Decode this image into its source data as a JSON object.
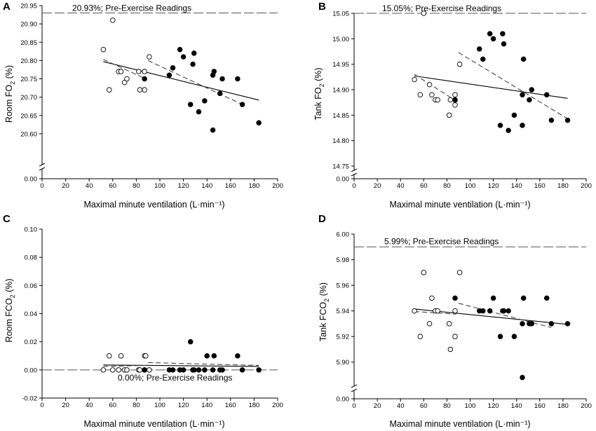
{
  "figure": {
    "xlabel": "Maximal minute ventilation (L·min⁻¹)"
  },
  "chart_data": [
    {
      "type": "scatter",
      "panel": "A",
      "ylabel_main": "Room FO",
      "ylabel_sub": "2",
      "ylabel_end": " (%)",
      "xlim": [
        0,
        200
      ],
      "x_ticks": [
        0,
        20,
        40,
        60,
        80,
        100,
        120,
        140,
        160,
        180,
        200
      ],
      "ylim": [
        20.55,
        20.95
      ],
      "y_ticks": [
        20.6,
        20.65,
        20.7,
        20.75,
        20.8,
        20.85,
        20.9,
        20.95
      ],
      "y_tick_labels": [
        "20.60",
        "20.65",
        "20.70",
        "20.75",
        "20.80",
        "20.85",
        "20.90",
        "20.95"
      ],
      "y_zero_label": "0.00",
      "y_axis_break": true,
      "reference": {
        "value": 20.93,
        "label": "20.93%; Pre-Exercise Readings"
      },
      "series": [
        {
          "name": "open",
          "filled": false,
          "x": [
            52,
            57,
            60,
            65,
            67,
            70,
            72,
            82,
            83,
            87,
            87,
            91
          ],
          "y": [
            20.83,
            20.72,
            20.91,
            20.77,
            20.77,
            20.74,
            20.75,
            20.77,
            20.72,
            20.77,
            20.72,
            20.81
          ]
        },
        {
          "name": "filled",
          "filled": true,
          "x": [
            87,
            108,
            111,
            117,
            120,
            126,
            128,
            129,
            133,
            138,
            145,
            145,
            146,
            151,
            153,
            166,
            170,
            184
          ],
          "y": [
            20.75,
            20.76,
            20.78,
            20.83,
            20.81,
            20.68,
            20.79,
            20.82,
            20.66,
            20.69,
            20.61,
            20.76,
            20.77,
            20.71,
            20.75,
            20.75,
            20.68,
            20.63
          ]
        }
      ],
      "fits": [
        {
          "style": "solid",
          "x": [
            52,
            184
          ],
          "y": [
            20.797,
            20.692
          ]
        },
        {
          "style": "dash",
          "x": [
            52,
            88
          ],
          "y": [
            20.803,
            20.75
          ]
        },
        {
          "style": "dash",
          "x": [
            90,
            170
          ],
          "y": [
            20.8,
            20.68
          ]
        }
      ]
    },
    {
      "type": "scatter",
      "panel": "B",
      "ylabel_main": "Tank FO",
      "ylabel_sub": "2",
      "ylabel_end": " (%)",
      "xlim": [
        0,
        200
      ],
      "x_ticks": [
        0,
        20,
        40,
        60,
        80,
        100,
        120,
        140,
        160,
        180,
        200
      ],
      "ylim": [
        14.75,
        15.05
      ],
      "y_ticks": [
        14.75,
        14.8,
        14.85,
        14.9,
        14.95,
        15.0,
        15.05
      ],
      "y_tick_labels": [
        "14.75",
        "14.80",
        "14.85",
        "14.90",
        "14.95",
        "15.00",
        "15.05"
      ],
      "y_zero_label": "0.00",
      "y_axis_break": true,
      "reference": {
        "value": 15.05,
        "label": "15.05%; Pre-Exercise Readings"
      },
      "series": [
        {
          "name": "open",
          "filled": false,
          "x": [
            52,
            57,
            60,
            65,
            67,
            70,
            72,
            82,
            83,
            87,
            87,
            91
          ],
          "y": [
            14.92,
            14.89,
            15.05,
            14.91,
            14.89,
            14.88,
            14.88,
            14.85,
            14.88,
            14.87,
            14.89,
            14.95
          ]
        },
        {
          "name": "filled",
          "filled": true,
          "x": [
            87,
            108,
            111,
            117,
            120,
            126,
            128,
            129,
            133,
            138,
            145,
            145,
            146,
            151,
            153,
            166,
            170,
            184
          ],
          "y": [
            14.88,
            14.98,
            14.96,
            15.01,
            15.0,
            14.83,
            15.01,
            14.99,
            14.82,
            14.85,
            14.83,
            14.89,
            14.96,
            14.88,
            14.9,
            14.89,
            14.84,
            14.84
          ]
        }
      ],
      "fits": [
        {
          "style": "solid",
          "x": [
            52,
            184
          ],
          "y": [
            14.927,
            14.883
          ]
        },
        {
          "style": "dash",
          "x": [
            52,
            90
          ],
          "y": [
            14.93,
            14.875
          ]
        },
        {
          "style": "dash",
          "x": [
            90,
            184
          ],
          "y": [
            14.973,
            14.843
          ]
        }
      ]
    },
    {
      "type": "scatter",
      "panel": "C",
      "ylabel_main": "Room FCO",
      "ylabel_sub": "2",
      "ylabel_end": " (%)",
      "xlim": [
        0,
        200
      ],
      "x_ticks": [
        0,
        20,
        40,
        60,
        80,
        100,
        120,
        140,
        160,
        180,
        200
      ],
      "ylim": [
        -0.02,
        0.1
      ],
      "y_ticks": [
        -0.02,
        0.0,
        0.02,
        0.04,
        0.06,
        0.08,
        0.1
      ],
      "y_tick_labels": [
        "-0.02",
        "0.00",
        "0.02",
        "0.04",
        "0.06",
        "0.08",
        "0.10"
      ],
      "y_zero_label": "",
      "y_axis_break": false,
      "reference": {
        "value": 0.0,
        "label": "0.00%; Pre-Exercise Readings"
      },
      "series": [
        {
          "name": "open",
          "filled": false,
          "x": [
            52,
            57,
            60,
            65,
            67,
            70,
            72,
            82,
            83,
            87,
            87,
            88,
            91
          ],
          "y": [
            0.0,
            0.01,
            0.0,
            0.0,
            0.01,
            0.0,
            0.0,
            0.0,
            0.0,
            0.01,
            0.0,
            0.01,
            0.0
          ]
        },
        {
          "name": "filled",
          "filled": true,
          "x": [
            87,
            108,
            111,
            117,
            120,
            126,
            128,
            129,
            133,
            138,
            140,
            145,
            146,
            151,
            153,
            166,
            170,
            184
          ],
          "y": [
            0.0,
            0.0,
            0.0,
            0.0,
            0.0,
            0.02,
            0.0,
            0.0,
            0.0,
            0.0,
            0.01,
            0.0,
            0.01,
            0.0,
            0.0,
            0.01,
            0.0,
            0.0
          ]
        }
      ],
      "fits": [
        {
          "style": "solid",
          "x": [
            52,
            184
          ],
          "y": [
            0.0035,
            0.0025
          ]
        },
        {
          "style": "dash",
          "x": [
            52,
            90
          ],
          "y": [
            0.0025,
            0.0032
          ]
        },
        {
          "style": "dash",
          "x": [
            90,
            184
          ],
          "y": [
            0.0052,
            0.0032
          ]
        }
      ]
    },
    {
      "type": "scatter",
      "panel": "D",
      "ylabel_main": "Tank FCO",
      "ylabel_sub": "2",
      "ylabel_end": " (%)",
      "xlim": [
        0,
        200
      ],
      "x_ticks": [
        0,
        20,
        40,
        60,
        80,
        100,
        120,
        140,
        160,
        180,
        200
      ],
      "ylim": [
        5.89,
        6.0
      ],
      "y_ticks": [
        5.9,
        5.92,
        5.94,
        5.96,
        5.98,
        6.0
      ],
      "y_tick_labels": [
        "5.90",
        "5.92",
        "5.94",
        "5.96",
        "5.98",
        "6.00"
      ],
      "y_zero_label": "0.00",
      "y_axis_break": true,
      "reference": {
        "value": 5.99,
        "label": "5.99%; Pre-Exercise Readings"
      },
      "series": [
        {
          "name": "open",
          "filled": false,
          "x": [
            52,
            57,
            60,
            65,
            67,
            70,
            72,
            82,
            83,
            87,
            87,
            91
          ],
          "y": [
            5.94,
            5.92,
            5.97,
            5.93,
            5.95,
            5.94,
            5.94,
            5.93,
            5.91,
            5.94,
            5.92,
            5.97
          ]
        },
        {
          "name": "filled",
          "filled": true,
          "x": [
            87,
            108,
            111,
            117,
            120,
            126,
            128,
            129,
            133,
            138,
            145,
            145,
            146,
            151,
            153,
            166,
            170,
            184
          ],
          "y": [
            5.95,
            5.94,
            5.94,
            5.94,
            5.95,
            5.92,
            5.94,
            5.94,
            5.94,
            5.92,
            5.93,
            5.888,
            5.95,
            5.93,
            5.93,
            5.95,
            5.93,
            5.93
          ]
        }
      ],
      "fits": [
        {
          "style": "solid",
          "x": [
            52,
            184
          ],
          "y": [
            5.9415,
            5.9295
          ]
        },
        {
          "style": "dash",
          "x": [
            52,
            88
          ],
          "y": [
            5.9395,
            5.9375
          ]
        },
        {
          "style": "dash",
          "x": [
            90,
            170
          ],
          "y": [
            5.946,
            5.927
          ]
        }
      ]
    }
  ]
}
